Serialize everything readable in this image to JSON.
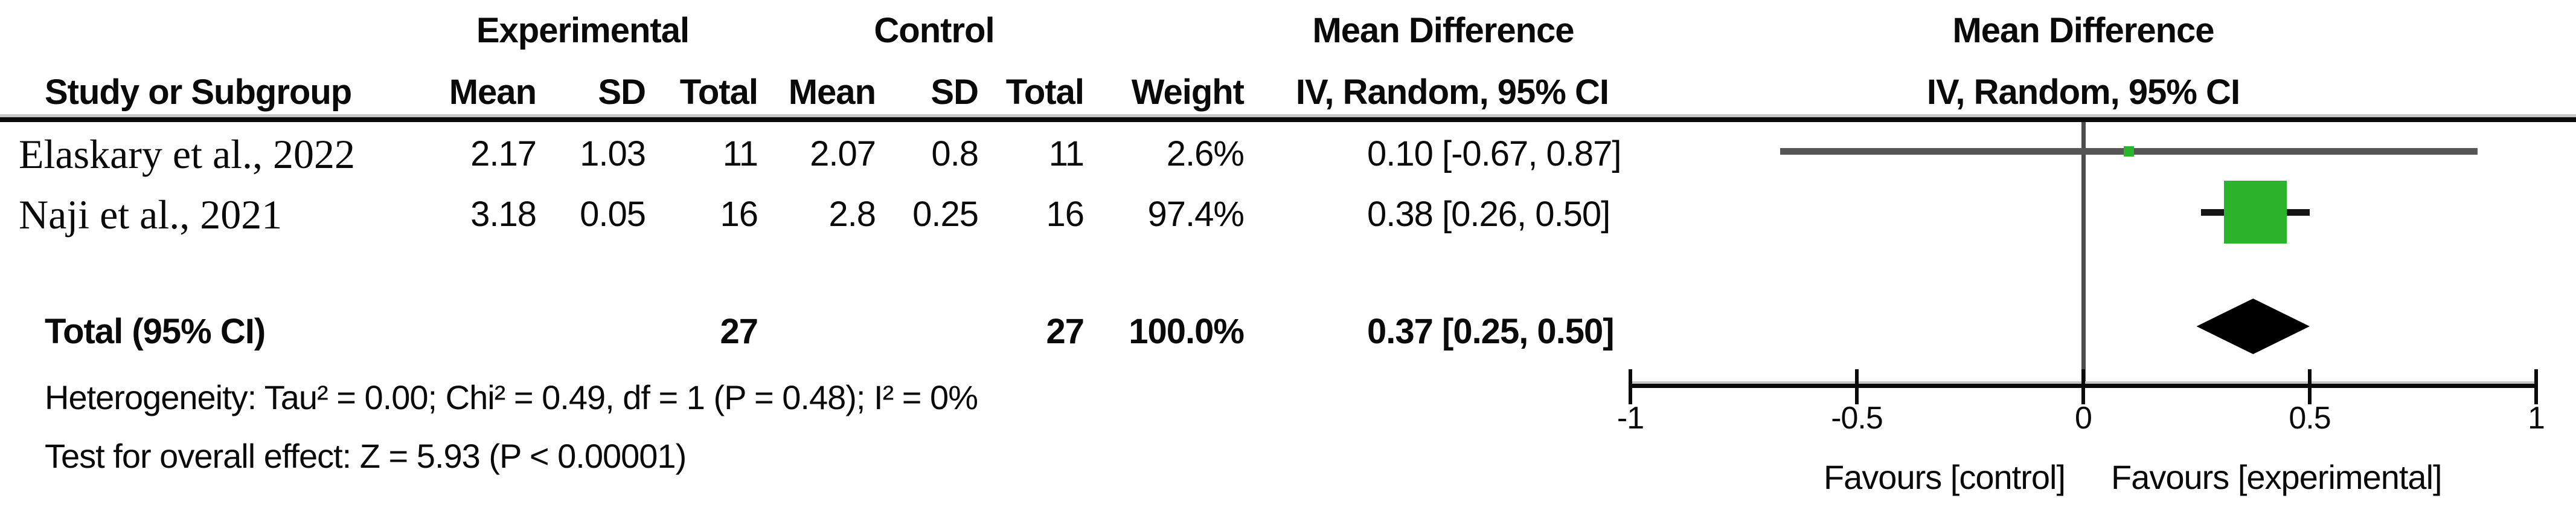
{
  "table": {
    "group_headers": {
      "experimental": "Experimental",
      "control": "Control",
      "mean_difference": "Mean Difference"
    },
    "column_headers": {
      "study": "Study or Subgroup",
      "mean": "Mean",
      "sd": "SD",
      "total": "Total",
      "weight": "Weight",
      "ci": "IV, Random, 95% CI"
    },
    "rows": [
      {
        "study": "Elaskary et al., 2022",
        "exp_mean": "2.17",
        "exp_sd": "1.03",
        "exp_total": "11",
        "ctl_mean": "2.07",
        "ctl_sd": "0.8",
        "ctl_total": "11",
        "weight": "2.6%",
        "ci_text": "0.10 [-0.67, 0.87]"
      },
      {
        "study": "Naji et al., 2021",
        "exp_mean": "3.18",
        "exp_sd": "0.05",
        "exp_total": "16",
        "ctl_mean": "2.8",
        "ctl_sd": "0.25",
        "ctl_total": "16",
        "weight": "97.4%",
        "ci_text": "0.38 [0.26, 0.50]"
      }
    ],
    "total_row": {
      "label": "Total (95% CI)",
      "exp_total": "27",
      "ctl_total": "27",
      "weight": "100.0%",
      "ci_text": "0.37 [0.25, 0.50]"
    },
    "footnotes": {
      "heterogeneity": "Heterogeneity: Tau² = 0.00; Chi² = 0.49, df = 1 (P = 0.48); I² = 0%",
      "overall_effect": "Test for overall effect: Z = 5.93 (P < 0.00001)"
    }
  },
  "chart_data": {
    "type": "scatter",
    "subtype": "forest-plot",
    "title": "Mean Difference",
    "subtitle": "IV, Random, 95% CI",
    "effect_measure": "Mean Difference, IV, Random, 95% CI",
    "axis": {
      "min": -1,
      "max": 1,
      "ticks": [
        -1,
        -0.5,
        0,
        0.5,
        1
      ],
      "tick_labels": [
        "-1",
        "-0.5",
        "0",
        "0.5",
        "1"
      ]
    },
    "studies": [
      {
        "name": "Elaskary et al., 2022",
        "mean": 0.1,
        "ci_low": -0.67,
        "ci_high": 0.87,
        "weight_pct": 2.6
      },
      {
        "name": "Naji et al., 2021",
        "mean": 0.38,
        "ci_low": 0.26,
        "ci_high": 0.5,
        "weight_pct": 97.4
      }
    ],
    "total": {
      "label": "Total (95% CI)",
      "mean": 0.37,
      "ci_low": 0.25,
      "ci_high": 0.5
    },
    "favours_left": "Favours [control]",
    "favours_right": "Favours [experimental]",
    "legend_position": "bottom",
    "grid": false,
    "colors": {
      "marker_green": "#2bb32b",
      "study1_line": "#565656",
      "study2_line": "#151515",
      "diamond": "#000000",
      "axis": "#0a0a0a",
      "zero_line": "#4d4d4d"
    }
  }
}
